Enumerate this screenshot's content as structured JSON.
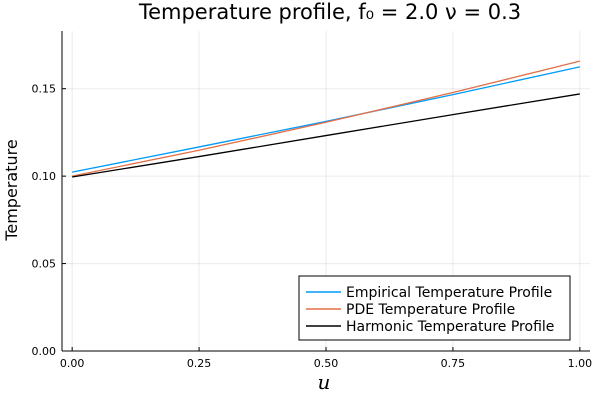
{
  "chart_data": {
    "type": "line",
    "title": "Temperature profile, f₀ = 2.0 ν = 0.3",
    "xlabel": "u",
    "ylabel": "Temperature",
    "xlim": [
      -0.02,
      1.02
    ],
    "ylim": [
      0.0,
      0.183
    ],
    "xticks": [
      0.0,
      0.25,
      0.5,
      0.75,
      1.0
    ],
    "xtick_labels": [
      "0.00",
      "0.25",
      "0.50",
      "0.75",
      "1.00"
    ],
    "yticks": [
      0.0,
      0.05,
      0.1,
      0.15
    ],
    "ytick_labels": [
      "0.00",
      "0.05",
      "0.10",
      "0.15"
    ],
    "grid": true,
    "legend_position": "bottom-right",
    "series": [
      {
        "name": "Empirical Temperature Profile",
        "color": "#009af9",
        "x": [
          0.0,
          0.25,
          0.5,
          0.75,
          1.0
        ],
        "y": [
          0.1023,
          0.1167,
          0.1313,
          0.1466,
          0.1625
        ]
      },
      {
        "name": "PDE Temperature Profile",
        "color": "#e26f46",
        "x": [
          0.0,
          0.25,
          0.5,
          0.75,
          1.0
        ],
        "y": [
          0.1,
          0.1148,
          0.1308,
          0.1478,
          0.1658
        ]
      },
      {
        "name": "Harmonic Temperature Profile",
        "color": "#000000",
        "x": [
          0.0,
          0.25,
          0.5,
          0.75,
          1.0
        ],
        "y": [
          0.0995,
          0.1112,
          0.1232,
          0.1352,
          0.147
        ]
      }
    ]
  }
}
